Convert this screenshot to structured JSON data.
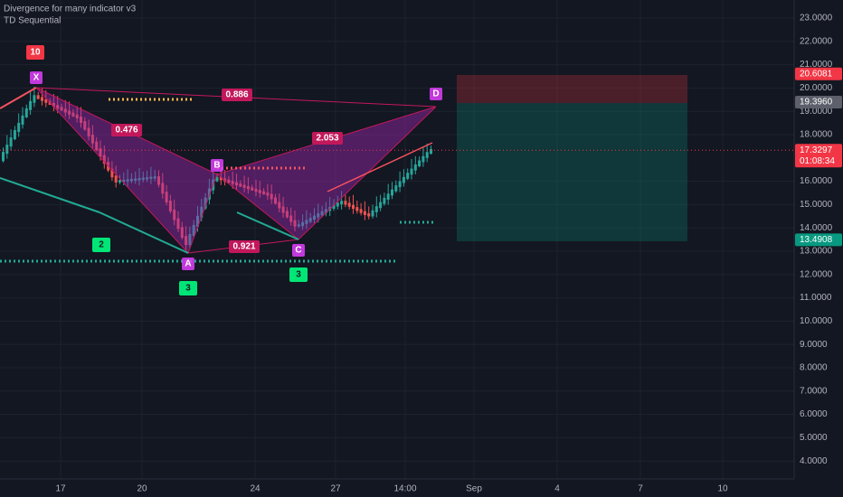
{
  "indicators": [
    "Divergence for many indicator v3",
    "TD Sequential"
  ],
  "price_axis": {
    "ticks": [
      "23.0000",
      "22.0000",
      "21.0000",
      "20.0000",
      "19.0000",
      "18.0000",
      "16.0000",
      "15.0000",
      "14.0000",
      "13.0000",
      "12.0000",
      "11.0000",
      "10.0000",
      "9.0000",
      "8.0000",
      "7.0000",
      "6.0000",
      "5.0000",
      "4.0000"
    ]
  },
  "price_tags": [
    {
      "label": "20.6081",
      "color": "#f23645"
    },
    {
      "label": "19.3960",
      "color": "#5d606b"
    },
    {
      "label": "17.3297",
      "color": "#f23645"
    },
    {
      "label": "13.4908",
      "color": "#089981"
    }
  ],
  "countdown": "01:08:34",
  "time_axis": {
    "labels": [
      "17",
      "20",
      "24",
      "27",
      "14:00",
      "Sep",
      "4",
      "7",
      "10"
    ]
  },
  "pattern": {
    "points": [
      "X",
      "A",
      "B",
      "C",
      "D"
    ],
    "ratios": [
      "0.886",
      "0.476",
      "2.053",
      "0.921"
    ]
  },
  "td_counts": [
    "10",
    "2",
    "3",
    "3"
  ]
}
